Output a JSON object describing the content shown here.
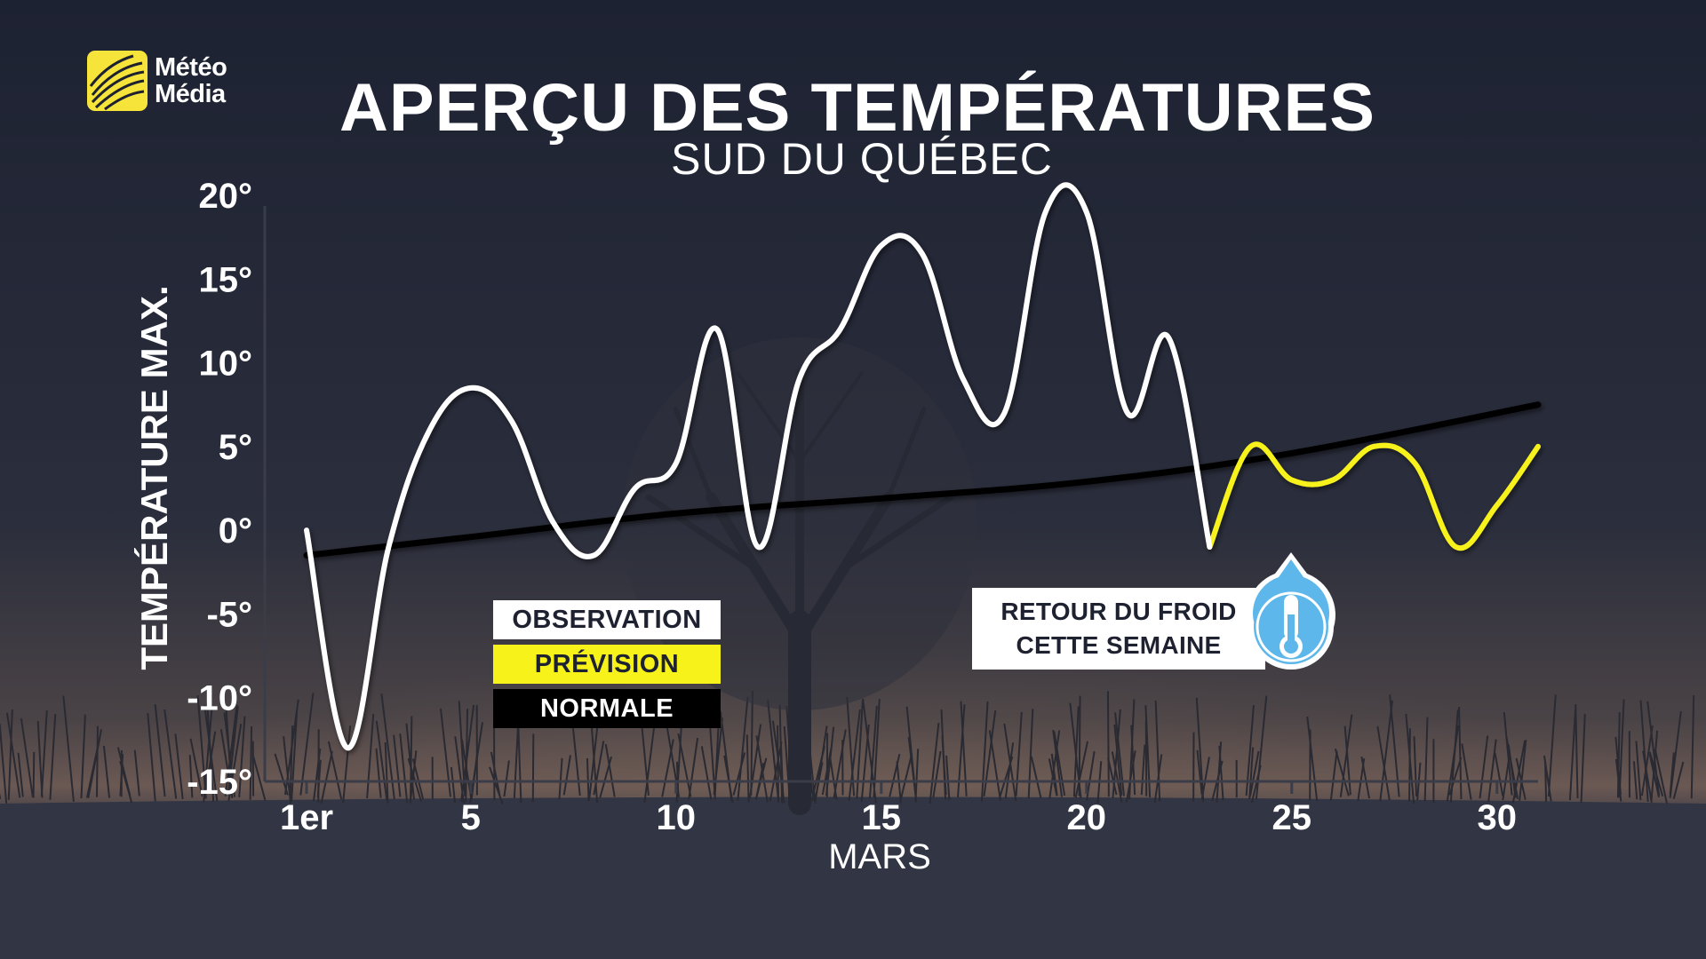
{
  "logo": {
    "line1": "Météo",
    "line2": "Média",
    "brand_color": "#f7e43a"
  },
  "title": "APERÇU DES TEMPÉRATURES",
  "subtitle": "SUD DU QUÉBEC",
  "legend": {
    "observation": "OBSERVATION",
    "prevision": "PRÉVISION",
    "normale": "NORMALE"
  },
  "callout": {
    "line1": "RETOUR DU FROID",
    "line2": "CETTE SEMAINE",
    "icon": "thermometer-cold-icon"
  },
  "colors": {
    "observation": "#ffffff",
    "prevision": "#f7f21a",
    "normale": "#000000",
    "icon_blue": "#5eb7ea"
  },
  "chart_data": {
    "type": "line",
    "xlabel": "MARS",
    "ylabel": "TEMPÉRATURE MAX.",
    "ylim": [
      -15,
      20
    ],
    "xlim": [
      1,
      31
    ],
    "y_ticks": [
      20,
      15,
      10,
      5,
      0,
      -5,
      -10,
      -15
    ],
    "y_tick_labels": [
      "20°",
      "15°",
      "10°",
      "5°",
      "0°",
      "-5°",
      "-10°",
      "-15°"
    ],
    "x_ticks": [
      1,
      5,
      10,
      15,
      20,
      25,
      30
    ],
    "x_tick_labels": [
      "1er",
      "5",
      "10",
      "15",
      "20",
      "25",
      "30"
    ],
    "grid": false,
    "legend_position": "bottom-left",
    "series": [
      {
        "name": "OBSERVATION",
        "x": [
          1,
          2,
          3,
          4,
          5,
          6,
          7,
          8,
          9,
          10,
          11,
          12,
          13,
          14,
          15,
          16,
          17,
          18,
          19,
          20,
          21,
          22,
          23
        ],
        "values": [
          0,
          -13,
          -1,
          6,
          8.5,
          6.5,
          0.5,
          -1.5,
          2.5,
          4,
          12,
          -1,
          9,
          12,
          17,
          16.5,
          9,
          7,
          19,
          19,
          7,
          11.5,
          -1
        ]
      },
      {
        "name": "PRÉVISION",
        "x": [
          23,
          24,
          25,
          26,
          27,
          28,
          29,
          30,
          31
        ],
        "values": [
          -1,
          5,
          3,
          3,
          5,
          4,
          -1,
          1.5,
          5
        ]
      },
      {
        "name": "NORMALE",
        "x": [
          1,
          5,
          10,
          15,
          20,
          25,
          31
        ],
        "values": [
          -1.5,
          -0.4,
          1,
          1.9,
          2.9,
          4.6,
          7.5
        ]
      }
    ]
  }
}
